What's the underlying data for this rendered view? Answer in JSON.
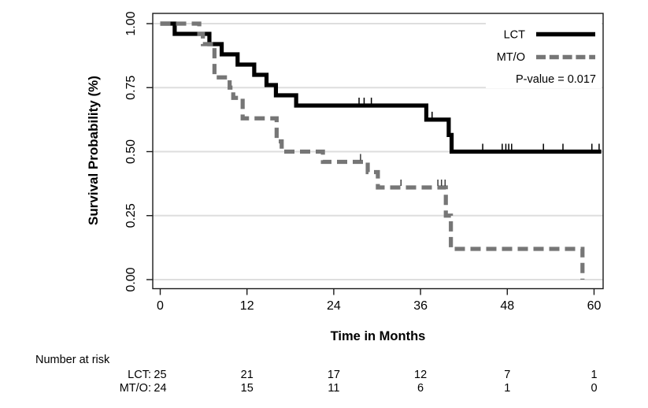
{
  "chart_data": {
    "type": "line",
    "subtype": "kaplan_meier_step",
    "title": "",
    "xlabel": "Time in Months",
    "ylabel": "Survival Probability (%)",
    "x_ticks": [
      0,
      12,
      24,
      36,
      48,
      60
    ],
    "y_ticks": [
      "1.00",
      "0.75",
      "0.50",
      "0.25",
      "0.00"
    ],
    "xlim": [
      0,
      61
    ],
    "ylim": [
      0.0,
      1.0
    ],
    "grid": true,
    "gridline_color": "#dedede",
    "frame_color": "#1a1a1a",
    "legend": {
      "position": "top-right",
      "entries": [
        {
          "label": "LCT",
          "line_style": "solid",
          "color": "#000000"
        },
        {
          "label": "MT/O",
          "line_style": "dashed",
          "color": "#767676"
        }
      ],
      "pvalue": "P-value = 0.017"
    },
    "series": [
      {
        "name": "LCT",
        "color": "#000000",
        "style": "solid",
        "censor_color": "#000000",
        "steps": [
          [
            0,
            1.0
          ],
          [
            2.0,
            0.96
          ],
          [
            6.8,
            0.92
          ],
          [
            8.5,
            0.88
          ],
          [
            10.7,
            0.84
          ],
          [
            13.0,
            0.8
          ],
          [
            14.7,
            0.76
          ],
          [
            16.0,
            0.72
          ],
          [
            18.8,
            0.68
          ],
          [
            36.8,
            0.625
          ],
          [
            39.9,
            0.565
          ],
          [
            40.3,
            0.5
          ]
        ],
        "end_time": 61.0,
        "censors": [
          [
            27.5,
            0.68
          ],
          [
            28.2,
            0.68
          ],
          [
            29.2,
            0.68
          ],
          [
            37.6,
            0.625
          ],
          [
            44.6,
            0.5
          ],
          [
            47.3,
            0.5
          ],
          [
            47.8,
            0.5
          ],
          [
            48.2,
            0.5
          ],
          [
            48.6,
            0.5
          ],
          [
            53.0,
            0.5
          ],
          [
            55.7,
            0.5
          ],
          [
            59.7,
            0.5
          ],
          [
            60.7,
            0.5
          ]
        ]
      },
      {
        "name": "MT/O",
        "color": "#767676",
        "style": "dashed",
        "censor_color": "#3c3c3c",
        "steps": [
          [
            0,
            1.0
          ],
          [
            5.4,
            0.96
          ],
          [
            5.9,
            0.92
          ],
          [
            7.5,
            0.79
          ],
          [
            9.6,
            0.75
          ],
          [
            10.1,
            0.71
          ],
          [
            11.4,
            0.63
          ],
          [
            16.1,
            0.54
          ],
          [
            16.8,
            0.5
          ],
          [
            22.5,
            0.46
          ],
          [
            28.7,
            0.42
          ],
          [
            30.1,
            0.36
          ],
          [
            39.5,
            0.25
          ],
          [
            40.2,
            0.12
          ],
          [
            58.4,
            0.0
          ]
        ],
        "end_time": 58.4,
        "censors": [
          [
            27.7,
            0.46
          ],
          [
            33.3,
            0.36
          ],
          [
            38.4,
            0.36
          ],
          [
            38.9,
            0.36
          ],
          [
            39.4,
            0.36
          ]
        ]
      }
    ],
    "risk_table": {
      "title": "Number at risk",
      "times": [
        0,
        12,
        24,
        36,
        48,
        60
      ],
      "rows": [
        {
          "label": "LCT:",
          "values": [
            "25",
            "21",
            "17",
            "12",
            "7",
            "1"
          ]
        },
        {
          "label": "MT/O:",
          "values": [
            "24",
            "15",
            "11",
            "6",
            "1",
            "0"
          ]
        }
      ]
    }
  }
}
